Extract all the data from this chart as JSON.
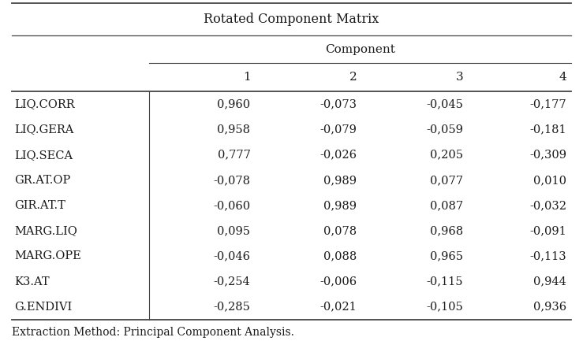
{
  "title": "Rotated Component Matrix",
  "col_header_group": "Component",
  "col_headers": [
    "1",
    "2",
    "3",
    "4"
  ],
  "row_labels": [
    "LIQ.CORR",
    "LIQ.GERA",
    "LIQ.SECA",
    "GR.AT.OP",
    "GIR.AT.T",
    "MARG.LIQ",
    "MARG.OPE",
    "K3.AT",
    "G.ENDIVI"
  ],
  "table_data": [
    [
      "0,960",
      "-0,073",
      "-0,045",
      "-0,177"
    ],
    [
      "0,958",
      "-0,079",
      "-0,059",
      "-0,181"
    ],
    [
      "0,777",
      "-0,026",
      "0,205",
      "-0,309"
    ],
    [
      "-0,078",
      "0,989",
      "0,077",
      "0,010"
    ],
    [
      "-0,060",
      "0,989",
      "0,087",
      "-0,032"
    ],
    [
      "0,095",
      "0,078",
      "0,968",
      "-0,091"
    ],
    [
      "-0,046",
      "0,088",
      "0,965",
      "-0,113"
    ],
    [
      "-0,254",
      "-0,006",
      "-0,115",
      "0,944"
    ],
    [
      "-0,285",
      "-0,021",
      "-0,105",
      "0,936"
    ]
  ],
  "footnote": "Extraction Method: Principal Component Analysis.",
  "bg_color": "#ffffff",
  "text_color": "#1a1a1a",
  "font_family": "serif",
  "title_fontsize": 11.5,
  "header_fontsize": 11,
  "cell_fontsize": 10.5,
  "footnote_fontsize": 10
}
